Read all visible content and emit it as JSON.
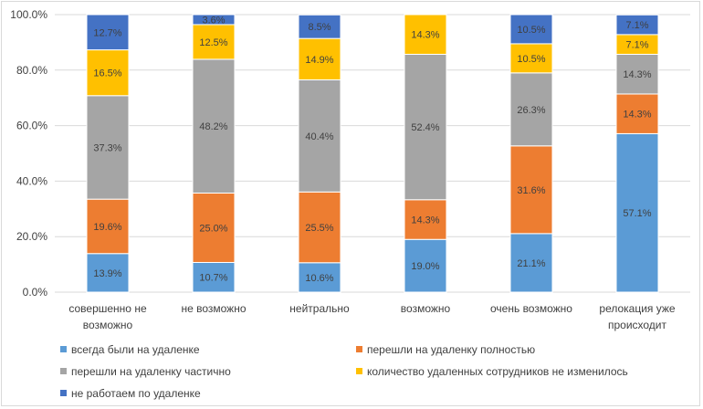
{
  "chart_data": {
    "type": "bar",
    "stacked": true,
    "percent": true,
    "title": "",
    "xlabel": "",
    "ylabel": "",
    "ylim": [
      0,
      100
    ],
    "yticks": [
      "0.0%",
      "20.0%",
      "40.0%",
      "60.0%",
      "80.0%",
      "100.0%"
    ],
    "categories": [
      [
        "совершенно не",
        "возможно"
      ],
      [
        "не возможно"
      ],
      [
        "нейтрально"
      ],
      [
        "возможно"
      ],
      [
        "очень возможно"
      ],
      [
        "релокация уже",
        "происходит"
      ]
    ],
    "series": [
      {
        "name": "всегда были на удаленке",
        "color": "#5b9bd5",
        "values": [
          13.9,
          10.7,
          10.6,
          19.0,
          21.1,
          57.1
        ]
      },
      {
        "name": "перешли на удаленку полностью",
        "color": "#ed7d31",
        "values": [
          19.6,
          25.0,
          25.5,
          14.3,
          31.6,
          14.3
        ]
      },
      {
        "name": "перешли на удаленку частично",
        "color": "#a5a5a5",
        "values": [
          37.3,
          48.2,
          40.4,
          52.4,
          26.3,
          14.3
        ]
      },
      {
        "name": "количество удаленных сотрудников не изменилось",
        "color": "#ffc000",
        "values": [
          16.5,
          12.5,
          14.9,
          14.3,
          10.5,
          7.1
        ]
      },
      {
        "name": "не работаем по удаленке",
        "color": "#4472c4",
        "values": [
          12.7,
          3.6,
          8.5,
          0,
          10.5,
          7.1
        ]
      }
    ],
    "legend_position": "bottom"
  }
}
